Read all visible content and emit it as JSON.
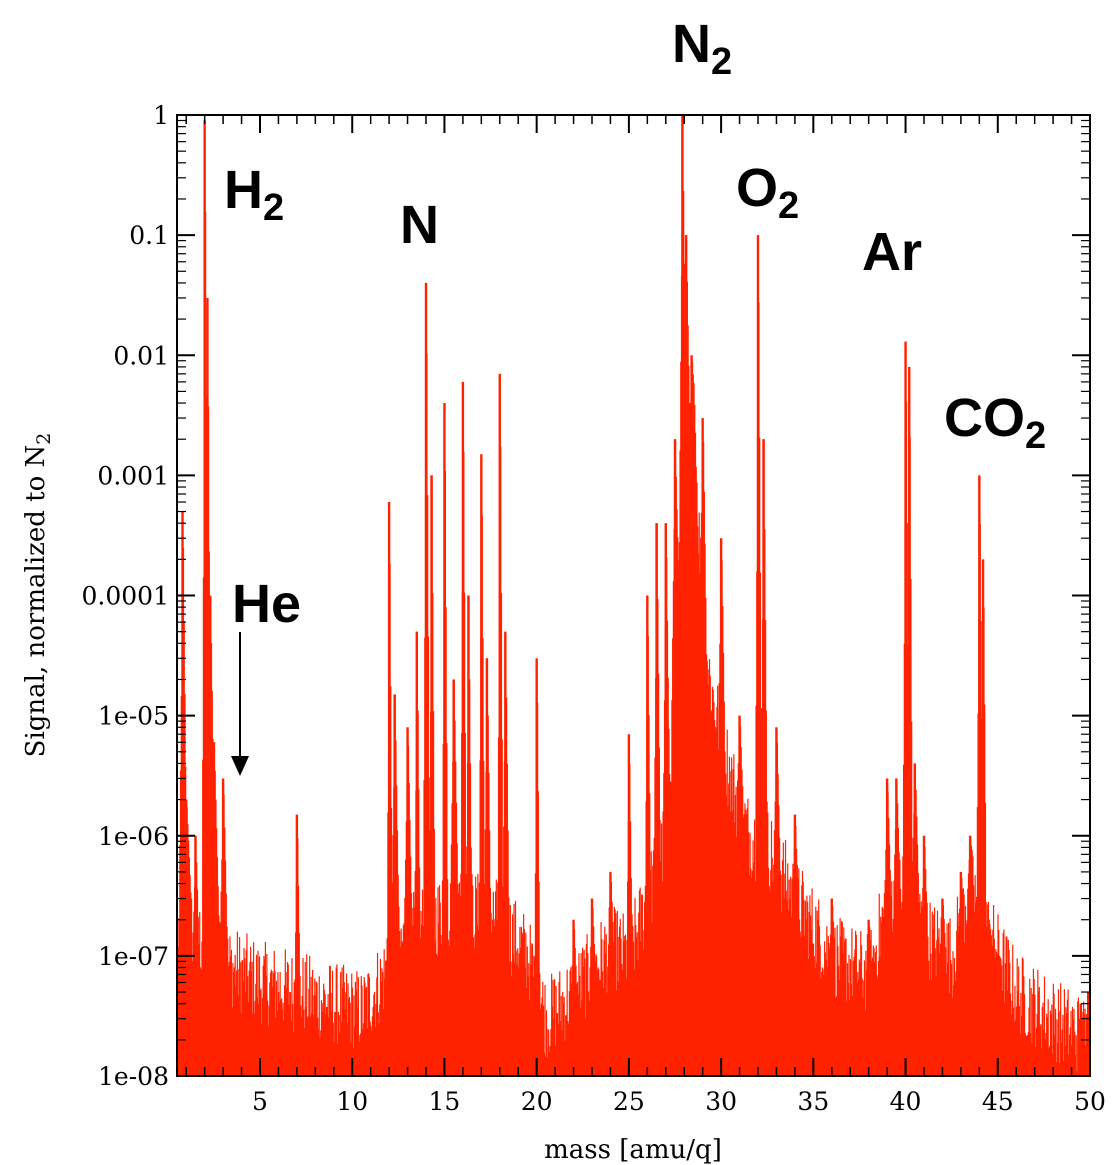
{
  "chart_data": {
    "type": "bar",
    "title": "",
    "xlabel": "mass [amu/q]",
    "ylabel": {
      "main": "Signal, normalized to N",
      "subscript": "2"
    },
    "xlim": [
      0.5,
      50
    ],
    "ylim": [
      1e-08,
      1
    ],
    "yscale": "log",
    "grid": false,
    "legend": "none",
    "bar_color": "#ff2200",
    "x_ticks": [
      {
        "value": 5,
        "label": "5"
      },
      {
        "value": 10,
        "label": "10"
      },
      {
        "value": 15,
        "label": "15"
      },
      {
        "value": 20,
        "label": "20"
      },
      {
        "value": 25,
        "label": "25"
      },
      {
        "value": 30,
        "label": "30"
      },
      {
        "value": 35,
        "label": "35"
      },
      {
        "value": 40,
        "label": "40"
      },
      {
        "value": 45,
        "label": "45"
      },
      {
        "value": 50,
        "label": "50"
      }
    ],
    "y_ticks": [
      {
        "value": 1,
        "label": "1"
      },
      {
        "value": 0.1,
        "label": "0.1"
      },
      {
        "value": 0.01,
        "label": "0.01"
      },
      {
        "value": 0.001,
        "label": "0.001"
      },
      {
        "value": 0.0001,
        "label": "0.0001"
      },
      {
        "value": 1e-05,
        "label": "1e-05"
      },
      {
        "value": 1e-06,
        "label": "1e-06"
      },
      {
        "value": 1e-07,
        "label": "1e-07"
      },
      {
        "value": 1e-08,
        "label": "1e-08"
      }
    ],
    "baseline_segments": [
      [
        0.5,
        1.6e-07
      ],
      [
        1.0,
        2e-07
      ],
      [
        1.5,
        1.5e-07
      ],
      [
        2.5,
        1e-07
      ],
      [
        3.5,
        8e-08
      ],
      [
        5,
        6e-08
      ],
      [
        7,
        5e-08
      ],
      [
        9,
        4e-08
      ],
      [
        10.5,
        3.5e-08
      ],
      [
        11.5,
        6e-08
      ],
      [
        12.5,
        1.2e-07
      ],
      [
        14,
        2e-07
      ],
      [
        16,
        2.5e-07
      ],
      [
        18,
        2e-07
      ],
      [
        19.5,
        1e-07
      ],
      [
        20.5,
        3e-08
      ],
      [
        22,
        5e-08
      ],
      [
        24,
        1.2e-07
      ],
      [
        25,
        1e-07
      ],
      [
        26,
        3e-07
      ],
      [
        27,
        1e-06
      ],
      [
        27.7,
        0.0001
      ],
      [
        28.5,
        0.003
      ],
      [
        29,
        5e-05
      ],
      [
        29.5,
        1.5e-05
      ],
      [
        30.5,
        3e-06
      ],
      [
        31.5,
        1e-06
      ],
      [
        32.5,
        8e-07
      ],
      [
        34,
        3e-07
      ],
      [
        36,
        1e-07
      ],
      [
        38,
        7e-08
      ],
      [
        39,
        3e-07
      ],
      [
        40,
        4e-07
      ],
      [
        41,
        1.5e-07
      ],
      [
        42.5,
        1e-07
      ],
      [
        43.5,
        4e-07
      ],
      [
        44.5,
        1.5e-07
      ],
      [
        46,
        5e-08
      ],
      [
        48,
        3e-08
      ],
      [
        50,
        2e-08
      ]
    ],
    "peaks": [
      {
        "x": 0.8,
        "value": 0.0005,
        "width": 0.15
      },
      {
        "x": 1.0,
        "value": 2e-06,
        "width": 0.2
      },
      {
        "x": 1.5,
        "value": 1e-06,
        "width": 0.1
      },
      {
        "x": 2.0,
        "value": 0.9,
        "width": 0.12
      },
      {
        "x": 2.15,
        "value": 0.03,
        "width": 0.12
      },
      {
        "x": 2.3,
        "value": 0.0001,
        "width": 0.2
      },
      {
        "x": 2.5,
        "value": 6e-06,
        "width": 0.2
      },
      {
        "x": 3.0,
        "value": 3e-06,
        "width": 0.15
      },
      {
        "x": 7.0,
        "value": 1.5e-06,
        "width": 0.1
      },
      {
        "x": 12.0,
        "value": 0.0006,
        "width": 0.1
      },
      {
        "x": 12.3,
        "value": 1.5e-05,
        "width": 0.15
      },
      {
        "x": 13.0,
        "value": 8e-06,
        "width": 0.15
      },
      {
        "x": 13.5,
        "value": 5e-05,
        "width": 0.1
      },
      {
        "x": 14.0,
        "value": 0.04,
        "width": 0.12
      },
      {
        "x": 14.3,
        "value": 0.001,
        "width": 0.1
      },
      {
        "x": 15.0,
        "value": 0.004,
        "width": 0.1
      },
      {
        "x": 15.5,
        "value": 2e-05,
        "width": 0.15
      },
      {
        "x": 16.0,
        "value": 0.006,
        "width": 0.1
      },
      {
        "x": 16.3,
        "value": 0.0001,
        "width": 0.1
      },
      {
        "x": 17.0,
        "value": 0.0015,
        "width": 0.1
      },
      {
        "x": 17.3,
        "value": 3e-05,
        "width": 0.12
      },
      {
        "x": 18.0,
        "value": 0.007,
        "width": 0.1
      },
      {
        "x": 18.3,
        "value": 5e-05,
        "width": 0.12
      },
      {
        "x": 20.0,
        "value": 3e-05,
        "width": 0.1
      },
      {
        "x": 22.0,
        "value": 2e-07,
        "width": 0.1
      },
      {
        "x": 23.0,
        "value": 3e-07,
        "width": 0.1
      },
      {
        "x": 24.0,
        "value": 5e-07,
        "width": 0.1
      },
      {
        "x": 25.0,
        "value": 7e-06,
        "width": 0.1
      },
      {
        "x": 26.0,
        "value": 0.0001,
        "width": 0.1
      },
      {
        "x": 26.5,
        "value": 0.0004,
        "width": 0.12
      },
      {
        "x": 27.0,
        "value": 0.0004,
        "width": 0.12
      },
      {
        "x": 27.5,
        "value": 0.002,
        "width": 0.15
      },
      {
        "x": 27.9,
        "value": 1.0,
        "width": 0.15
      },
      {
        "x": 28.1,
        "value": 0.1,
        "width": 0.15
      },
      {
        "x": 28.4,
        "value": 0.01,
        "width": 0.15
      },
      {
        "x": 29.0,
        "value": 0.003,
        "width": 0.12
      },
      {
        "x": 30.0,
        "value": 0.0003,
        "width": 0.12
      },
      {
        "x": 31.0,
        "value": 1e-05,
        "width": 0.12
      },
      {
        "x": 32.0,
        "value": 0.1,
        "width": 0.12
      },
      {
        "x": 32.3,
        "value": 0.002,
        "width": 0.12
      },
      {
        "x": 33.0,
        "value": 8e-06,
        "width": 0.12
      },
      {
        "x": 34.0,
        "value": 1.5e-06,
        "width": 0.1
      },
      {
        "x": 36.0,
        "value": 3e-07,
        "width": 0.1
      },
      {
        "x": 38.0,
        "value": 2e-07,
        "width": 0.1
      },
      {
        "x": 39.0,
        "value": 3e-06,
        "width": 0.12
      },
      {
        "x": 39.5,
        "value": 3e-06,
        "width": 0.12
      },
      {
        "x": 40.0,
        "value": 0.013,
        "width": 0.12
      },
      {
        "x": 40.2,
        "value": 0.008,
        "width": 0.1
      },
      {
        "x": 40.5,
        "value": 4e-06,
        "width": 0.15
      },
      {
        "x": 41.0,
        "value": 1e-06,
        "width": 0.12
      },
      {
        "x": 42.0,
        "value": 3e-07,
        "width": 0.1
      },
      {
        "x": 43.0,
        "value": 5e-07,
        "width": 0.1
      },
      {
        "x": 43.5,
        "value": 1e-06,
        "width": 0.12
      },
      {
        "x": 44.0,
        "value": 0.001,
        "width": 0.12
      },
      {
        "x": 44.2,
        "value": 0.0002,
        "width": 0.1
      },
      {
        "x": 44.5,
        "value": 2e-07,
        "width": 0.1
      },
      {
        "x": 45.0,
        "value": 1e-07,
        "width": 0.1
      },
      {
        "x": 49.5,
        "value": 4e-08,
        "width": 0.1
      },
      {
        "x": 49.9,
        "value": 5e-08,
        "width": 0.1
      }
    ],
    "annotations": [
      {
        "id": "N2",
        "text": "N",
        "subscript": "2"
      },
      {
        "id": "H2",
        "text": "H",
        "subscript": "2"
      },
      {
        "id": "N",
        "text": "N",
        "subscript": ""
      },
      {
        "id": "O2",
        "text": "O",
        "subscript": "2"
      },
      {
        "id": "Ar",
        "text": "Ar",
        "subscript": ""
      },
      {
        "id": "CO2",
        "text": "CO",
        "subscript": "2"
      },
      {
        "id": "He",
        "text": "He",
        "subscript": "",
        "arrow_to_x": 4.0,
        "arrow_to_value": 5e-06
      }
    ]
  }
}
